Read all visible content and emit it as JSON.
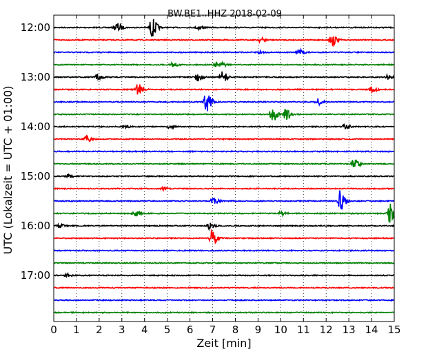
{
  "chart_data": {
    "type": "line",
    "title": "BW.BE1..HHZ 2018-02-09",
    "xlabel": "Zeit  [min]",
    "ylabel": "UTC (Lokalzeit = UTC + 01:00)",
    "xlim": [
      0,
      15
    ],
    "x_ticks": [
      "0",
      "1",
      "2",
      "3",
      "4",
      "5",
      "6",
      "7",
      "8",
      "9",
      "10",
      "11",
      "12",
      "13",
      "14",
      "15"
    ],
    "y_ticks": [
      "12:00",
      "13:00",
      "14:00",
      "15:00",
      "16:00",
      "17:00"
    ],
    "grid": "vertical-dotted",
    "colors": [
      "#000000",
      "#ff0000",
      "#0000ff",
      "#008000"
    ],
    "traces": [
      {
        "start": "12:00",
        "color": "#000000",
        "bursts": [
          [
            2.75,
            7
          ],
          [
            4.3,
            14
          ],
          [
            6.35,
            3
          ]
        ]
      },
      {
        "start": "12:15",
        "color": "#ff0000",
        "bursts": [
          [
            9.1,
            3
          ],
          [
            12.2,
            10
          ]
        ]
      },
      {
        "start": "12:30",
        "color": "#0000ff",
        "bursts": [
          [
            9.0,
            2
          ],
          [
            10.8,
            4
          ]
        ]
      },
      {
        "start": "12:45",
        "color": "#008000",
        "bursts": [
          [
            5.2,
            3
          ],
          [
            7.1,
            3
          ],
          [
            7.4,
            2
          ]
        ]
      },
      {
        "start": "13:00",
        "color": "#000000",
        "bursts": [
          [
            1.9,
            4
          ],
          [
            6.3,
            6
          ],
          [
            7.4,
            8
          ],
          [
            14.7,
            3
          ]
        ]
      },
      {
        "start": "13:15",
        "color": "#ff0000",
        "bursts": [
          [
            3.7,
            10
          ],
          [
            14.0,
            4
          ]
        ]
      },
      {
        "start": "13:30",
        "color": "#0000ff",
        "bursts": [
          [
            6.7,
            14
          ],
          [
            11.6,
            5
          ]
        ]
      },
      {
        "start": "13:45",
        "color": "#008000",
        "bursts": [
          [
            9.6,
            12
          ],
          [
            10.2,
            9
          ]
        ]
      },
      {
        "start": "14:00",
        "color": "#000000",
        "bursts": [
          [
            3.15,
            2
          ],
          [
            5.1,
            2
          ],
          [
            12.8,
            4
          ]
        ]
      },
      {
        "start": "14:15",
        "color": "#ff0000",
        "bursts": [
          [
            1.45,
            5
          ]
        ]
      },
      {
        "start": "14:30",
        "color": "#0000ff",
        "bursts": []
      },
      {
        "start": "14:45",
        "color": "#008000",
        "bursts": [
          [
            13.2,
            7
          ]
        ]
      },
      {
        "start": "15:00",
        "color": "#000000",
        "bursts": [
          [
            0.6,
            2
          ]
        ]
      },
      {
        "start": "15:15",
        "color": "#ff0000",
        "bursts": [
          [
            4.8,
            2
          ]
        ]
      },
      {
        "start": "15:30",
        "color": "#0000ff",
        "bursts": [
          [
            7.0,
            5
          ],
          [
            12.6,
            15
          ]
        ]
      },
      {
        "start": "15:45",
        "color": "#008000",
        "bursts": [
          [
            3.55,
            4
          ],
          [
            10.0,
            3
          ],
          [
            14.8,
            14
          ]
        ]
      },
      {
        "start": "16:00",
        "color": "#000000",
        "bursts": [
          [
            0.2,
            3
          ],
          [
            6.85,
            5
          ]
        ]
      },
      {
        "start": "16:15",
        "color": "#ff0000",
        "bursts": [
          [
            6.95,
            12
          ]
        ]
      },
      {
        "start": "16:30",
        "color": "#0000ff",
        "bursts": []
      },
      {
        "start": "16:45",
        "color": "#008000",
        "bursts": []
      },
      {
        "start": "17:00",
        "color": "#000000",
        "bursts": [
          [
            0.55,
            2
          ]
        ]
      },
      {
        "start": "17:15",
        "color": "#ff0000",
        "bursts": []
      },
      {
        "start": "17:30",
        "color": "#0000ff",
        "bursts": []
      },
      {
        "start": "17:45",
        "color": "#008000",
        "bursts": []
      }
    ]
  }
}
